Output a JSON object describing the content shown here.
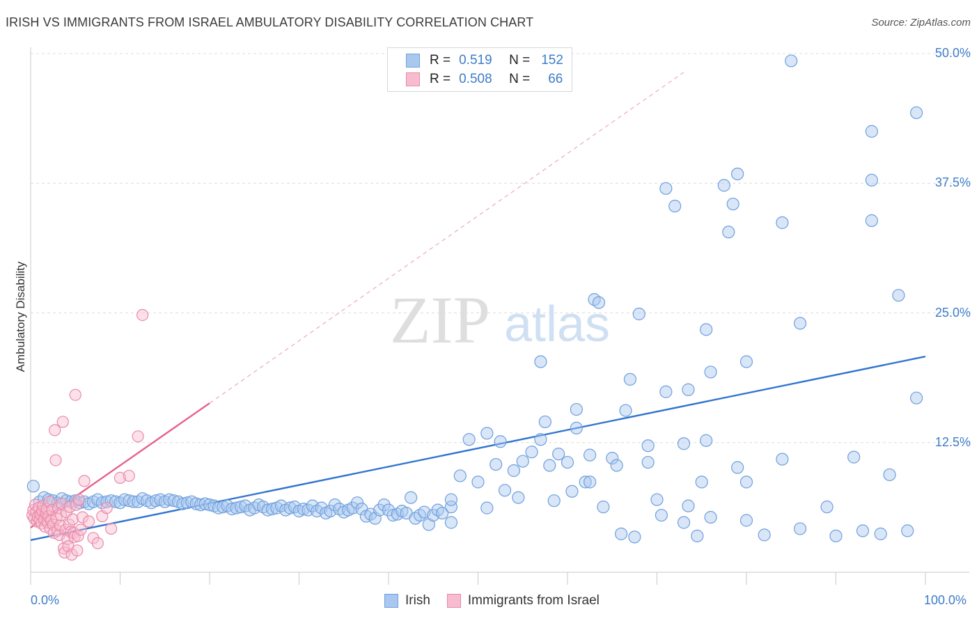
{
  "title": "IRISH VS IMMIGRANTS FROM ISRAEL AMBULATORY DISABILITY CORRELATION CHART",
  "source": "Source: ZipAtlas.com",
  "watermark": {
    "zip": "ZIP",
    "atlas": "atlas"
  },
  "legend": {
    "rows": [
      {
        "r_label": "R =",
        "r_value": "0.519",
        "n_label": "N =",
        "n_value": "152",
        "color": "#a9c8f0",
        "border": "#6f9fdc"
      },
      {
        "r_label": "R =",
        "r_value": "0.508",
        "n_label": "N =",
        "n_value": "66",
        "color": "#f8bcd0",
        "border": "#e88aa8"
      }
    ]
  },
  "bottom_legend": {
    "items": [
      "Irish",
      "Immigrants from Israel"
    ]
  },
  "chart_data": {
    "type": "scatter",
    "title": "IRISH VS IMMIGRANTS FROM ISRAEL AMBULATORY DISABILITY CORRELATION CHART",
    "xlabel": "",
    "ylabel": "Ambulatory Disability",
    "xlim": [
      0,
      100
    ],
    "ylim": [
      0,
      50
    ],
    "x_tick_labels": [
      "0.0%",
      "100.0%"
    ],
    "y_ticks": [
      12.5,
      25.0,
      37.5,
      50.0
    ],
    "y_tick_labels": [
      "12.5%",
      "25.0%",
      "37.5%",
      "50.0%"
    ],
    "grid": true,
    "legend_position": "top-center",
    "series": [
      {
        "name": "Irish",
        "color": "#6f9fdc",
        "fill": "#a9c8f0",
        "trend": {
          "x0": 0,
          "y0": 3.1,
          "x1": 100,
          "y1": 20.8,
          "style": "solid",
          "line_color": "#2f74d0"
        },
        "points": [
          [
            0.3,
            8.3
          ],
          [
            1,
            6.8
          ],
          [
            1.5,
            7.2
          ],
          [
            2,
            7.0
          ],
          [
            2.5,
            6.9
          ],
          [
            3,
            6.7
          ],
          [
            3.5,
            7.1
          ],
          [
            4,
            6.9
          ],
          [
            4.5,
            6.8
          ],
          [
            5,
            6.9
          ],
          [
            5.5,
            6.7
          ],
          [
            6,
            6.8
          ],
          [
            6.5,
            6.6
          ],
          [
            7,
            6.8
          ],
          [
            7.5,
            7.0
          ],
          [
            8,
            6.7
          ],
          [
            8.5,
            6.8
          ],
          [
            9,
            6.9
          ],
          [
            9.5,
            6.8
          ],
          [
            10,
            6.7
          ],
          [
            10.5,
            7.0
          ],
          [
            11,
            6.9
          ],
          [
            11.5,
            6.8
          ],
          [
            12,
            6.8
          ],
          [
            12.5,
            7.1
          ],
          [
            13,
            6.9
          ],
          [
            13.5,
            6.7
          ],
          [
            14,
            6.9
          ],
          [
            14.5,
            7.0
          ],
          [
            15,
            6.8
          ],
          [
            15.5,
            7.0
          ],
          [
            16,
            6.9
          ],
          [
            16.5,
            6.8
          ],
          [
            17,
            6.6
          ],
          [
            17.5,
            6.7
          ],
          [
            18,
            6.8
          ],
          [
            18.5,
            6.6
          ],
          [
            19,
            6.5
          ],
          [
            19.5,
            6.6
          ],
          [
            20,
            6.5
          ],
          [
            20.5,
            6.4
          ],
          [
            21,
            6.2
          ],
          [
            21.5,
            6.3
          ],
          [
            22,
            6.4
          ],
          [
            22.5,
            6.1
          ],
          [
            23,
            6.2
          ],
          [
            23.5,
            6.3
          ],
          [
            24,
            6.4
          ],
          [
            24.5,
            6.0
          ],
          [
            25,
            6.2
          ],
          [
            25.5,
            6.5
          ],
          [
            26,
            6.3
          ],
          [
            26.5,
            6.0
          ],
          [
            27,
            6.1
          ],
          [
            27.5,
            6.2
          ],
          [
            28,
            6.4
          ],
          [
            28.5,
            6.0
          ],
          [
            29,
            6.2
          ],
          [
            29.5,
            6.3
          ],
          [
            30,
            5.9
          ],
          [
            30.5,
            6.1
          ],
          [
            31,
            6.0
          ],
          [
            31.5,
            6.4
          ],
          [
            32,
            5.9
          ],
          [
            32.5,
            6.2
          ],
          [
            33,
            5.7
          ],
          [
            33.5,
            5.9
          ],
          [
            34,
            6.5
          ],
          [
            34.5,
            6.1
          ],
          [
            35,
            5.8
          ],
          [
            35.5,
            6.0
          ],
          [
            36,
            6.2
          ],
          [
            36.5,
            6.7
          ],
          [
            37,
            6.1
          ],
          [
            37.5,
            5.4
          ],
          [
            38,
            5.6
          ],
          [
            38.5,
            5.2
          ],
          [
            39,
            6.0
          ],
          [
            39.5,
            6.5
          ],
          [
            40,
            6.0
          ],
          [
            40.5,
            5.5
          ],
          [
            41,
            5.6
          ],
          [
            41.5,
            5.9
          ],
          [
            42,
            5.7
          ],
          [
            42.5,
            7.2
          ],
          [
            43,
            5.2
          ],
          [
            43.5,
            5.5
          ],
          [
            44,
            5.8
          ],
          [
            44.5,
            4.6
          ],
          [
            45,
            5.5
          ],
          [
            45.5,
            6.0
          ],
          [
            46,
            5.7
          ],
          [
            47,
            6.3
          ],
          [
            47,
            4.8
          ],
          [
            47,
            7.0
          ],
          [
            48,
            9.3
          ],
          [
            49,
            12.8
          ],
          [
            50,
            8.7
          ],
          [
            51,
            13.4
          ],
          [
            51,
            6.2
          ],
          [
            52,
            10.4
          ],
          [
            52.5,
            12.6
          ],
          [
            53,
            7.9
          ],
          [
            54,
            9.8
          ],
          [
            54.5,
            7.2
          ],
          [
            55,
            10.7
          ],
          [
            56,
            11.6
          ],
          [
            57,
            12.8
          ],
          [
            57.5,
            14.5
          ],
          [
            57,
            20.3
          ],
          [
            58,
            10.3
          ],
          [
            58.5,
            6.9
          ],
          [
            59,
            11.4
          ],
          [
            60,
            10.6
          ],
          [
            60.5,
            7.8
          ],
          [
            61,
            13.9
          ],
          [
            61,
            15.7
          ],
          [
            62,
            8.7
          ],
          [
            62.5,
            8.7
          ],
          [
            62.5,
            11.3
          ],
          [
            63,
            26.3
          ],
          [
            63.5,
            26.0
          ],
          [
            64,
            6.3
          ],
          [
            65,
            11.0
          ],
          [
            65.5,
            10.3
          ],
          [
            66,
            3.7
          ],
          [
            66.5,
            15.6
          ],
          [
            67,
            18.6
          ],
          [
            67.5,
            3.4
          ],
          [
            68,
            24.9
          ],
          [
            69,
            12.2
          ],
          [
            69,
            10.6
          ],
          [
            70,
            7.0
          ],
          [
            70.5,
            5.5
          ],
          [
            71,
            17.4
          ],
          [
            71,
            37.0
          ],
          [
            72,
            35.3
          ],
          [
            73,
            12.4
          ],
          [
            73,
            4.8
          ],
          [
            73.5,
            6.4
          ],
          [
            73.5,
            17.6
          ],
          [
            74.5,
            3.5
          ],
          [
            75,
            8.7
          ],
          [
            75.5,
            12.7
          ],
          [
            75.5,
            23.4
          ],
          [
            76,
            5.3
          ],
          [
            76,
            19.3
          ],
          [
            77.5,
            37.3
          ],
          [
            78,
            32.8
          ],
          [
            78.5,
            35.5
          ],
          [
            79,
            38.4
          ],
          [
            79,
            10.1
          ],
          [
            80,
            20.3
          ],
          [
            80,
            5.0
          ],
          [
            80,
            8.7
          ],
          [
            82,
            3.6
          ],
          [
            84,
            33.7
          ],
          [
            84,
            10.9
          ],
          [
            85,
            49.3
          ],
          [
            86,
            24.0
          ],
          [
            86,
            4.2
          ],
          [
            89,
            6.3
          ],
          [
            90,
            3.5
          ],
          [
            92,
            11.1
          ],
          [
            93,
            4.0
          ],
          [
            94,
            42.5
          ],
          [
            94,
            33.9
          ],
          [
            94,
            37.8
          ],
          [
            95,
            3.7
          ],
          [
            96,
            9.4
          ],
          [
            97,
            26.7
          ],
          [
            98,
            4.0
          ],
          [
            99,
            44.3
          ],
          [
            99,
            16.8
          ]
        ]
      },
      {
        "name": "Immigrants from Israel",
        "color": "#e88aa8",
        "fill": "#f8bcd0",
        "trend": {
          "x0": 0,
          "y0": 4.3,
          "x1": 20,
          "y1": 16.3,
          "x_ext": 73,
          "y_ext": 48.2,
          "style": "solid+dashed",
          "line_color": "#e8608a"
        },
        "points": [
          [
            0.2,
            5.5
          ],
          [
            0.3,
            6.0
          ],
          [
            0.4,
            5.2
          ],
          [
            0.5,
            6.5
          ],
          [
            0.6,
            5.8
          ],
          [
            0.7,
            4.9
          ],
          [
            0.8,
            5.3
          ],
          [
            0.9,
            6.2
          ],
          [
            1.0,
            5.0
          ],
          [
            1.1,
            5.6
          ],
          [
            1.2,
            4.7
          ],
          [
            1.3,
            5.9
          ],
          [
            1.4,
            6.4
          ],
          [
            1.5,
            5.1
          ],
          [
            1.6,
            4.4
          ],
          [
            1.7,
            5.7
          ],
          [
            1.8,
            6.1
          ],
          [
            1.9,
            4.8
          ],
          [
            2.0,
            5.4
          ],
          [
            2.1,
            6.8
          ],
          [
            2.2,
            4.2
          ],
          [
            2.3,
            5.0
          ],
          [
            2.4,
            6.0
          ],
          [
            2.5,
            4.6
          ],
          [
            2.6,
            3.8
          ],
          [
            2.7,
            13.7
          ],
          [
            2.8,
            10.8
          ],
          [
            2.9,
            5.2
          ],
          [
            3.0,
            4.0
          ],
          [
            3.1,
            6.2
          ],
          [
            3.2,
            3.6
          ],
          [
            3.3,
            4.5
          ],
          [
            3.4,
            5.5
          ],
          [
            3.5,
            6.6
          ],
          [
            3.6,
            14.5
          ],
          [
            3.7,
            2.3
          ],
          [
            3.8,
            1.9
          ],
          [
            3.9,
            4.1
          ],
          [
            4.0,
            5.8
          ],
          [
            4.1,
            3.2
          ],
          [
            4.2,
            2.5
          ],
          [
            4.3,
            4.6
          ],
          [
            4.4,
            6.3
          ],
          [
            4.5,
            3.9
          ],
          [
            4.6,
            1.7
          ],
          [
            4.7,
            5.1
          ],
          [
            4.8,
            3.8
          ],
          [
            4.9,
            3.4
          ],
          [
            5.0,
            17.1
          ],
          [
            5.1,
            6.5
          ],
          [
            5.2,
            2.1
          ],
          [
            5.3,
            3.5
          ],
          [
            5.4,
            7.0
          ],
          [
            5.6,
            4.1
          ],
          [
            5.8,
            5.3
          ],
          [
            6.0,
            8.8
          ],
          [
            6.5,
            4.9
          ],
          [
            7.0,
            3.3
          ],
          [
            7.5,
            2.8
          ],
          [
            8.0,
            5.4
          ],
          [
            8.5,
            6.2
          ],
          [
            9.0,
            4.2
          ],
          [
            10.0,
            9.1
          ],
          [
            11.0,
            9.3
          ],
          [
            12.0,
            13.1
          ],
          [
            12.5,
            24.8
          ]
        ]
      }
    ]
  }
}
